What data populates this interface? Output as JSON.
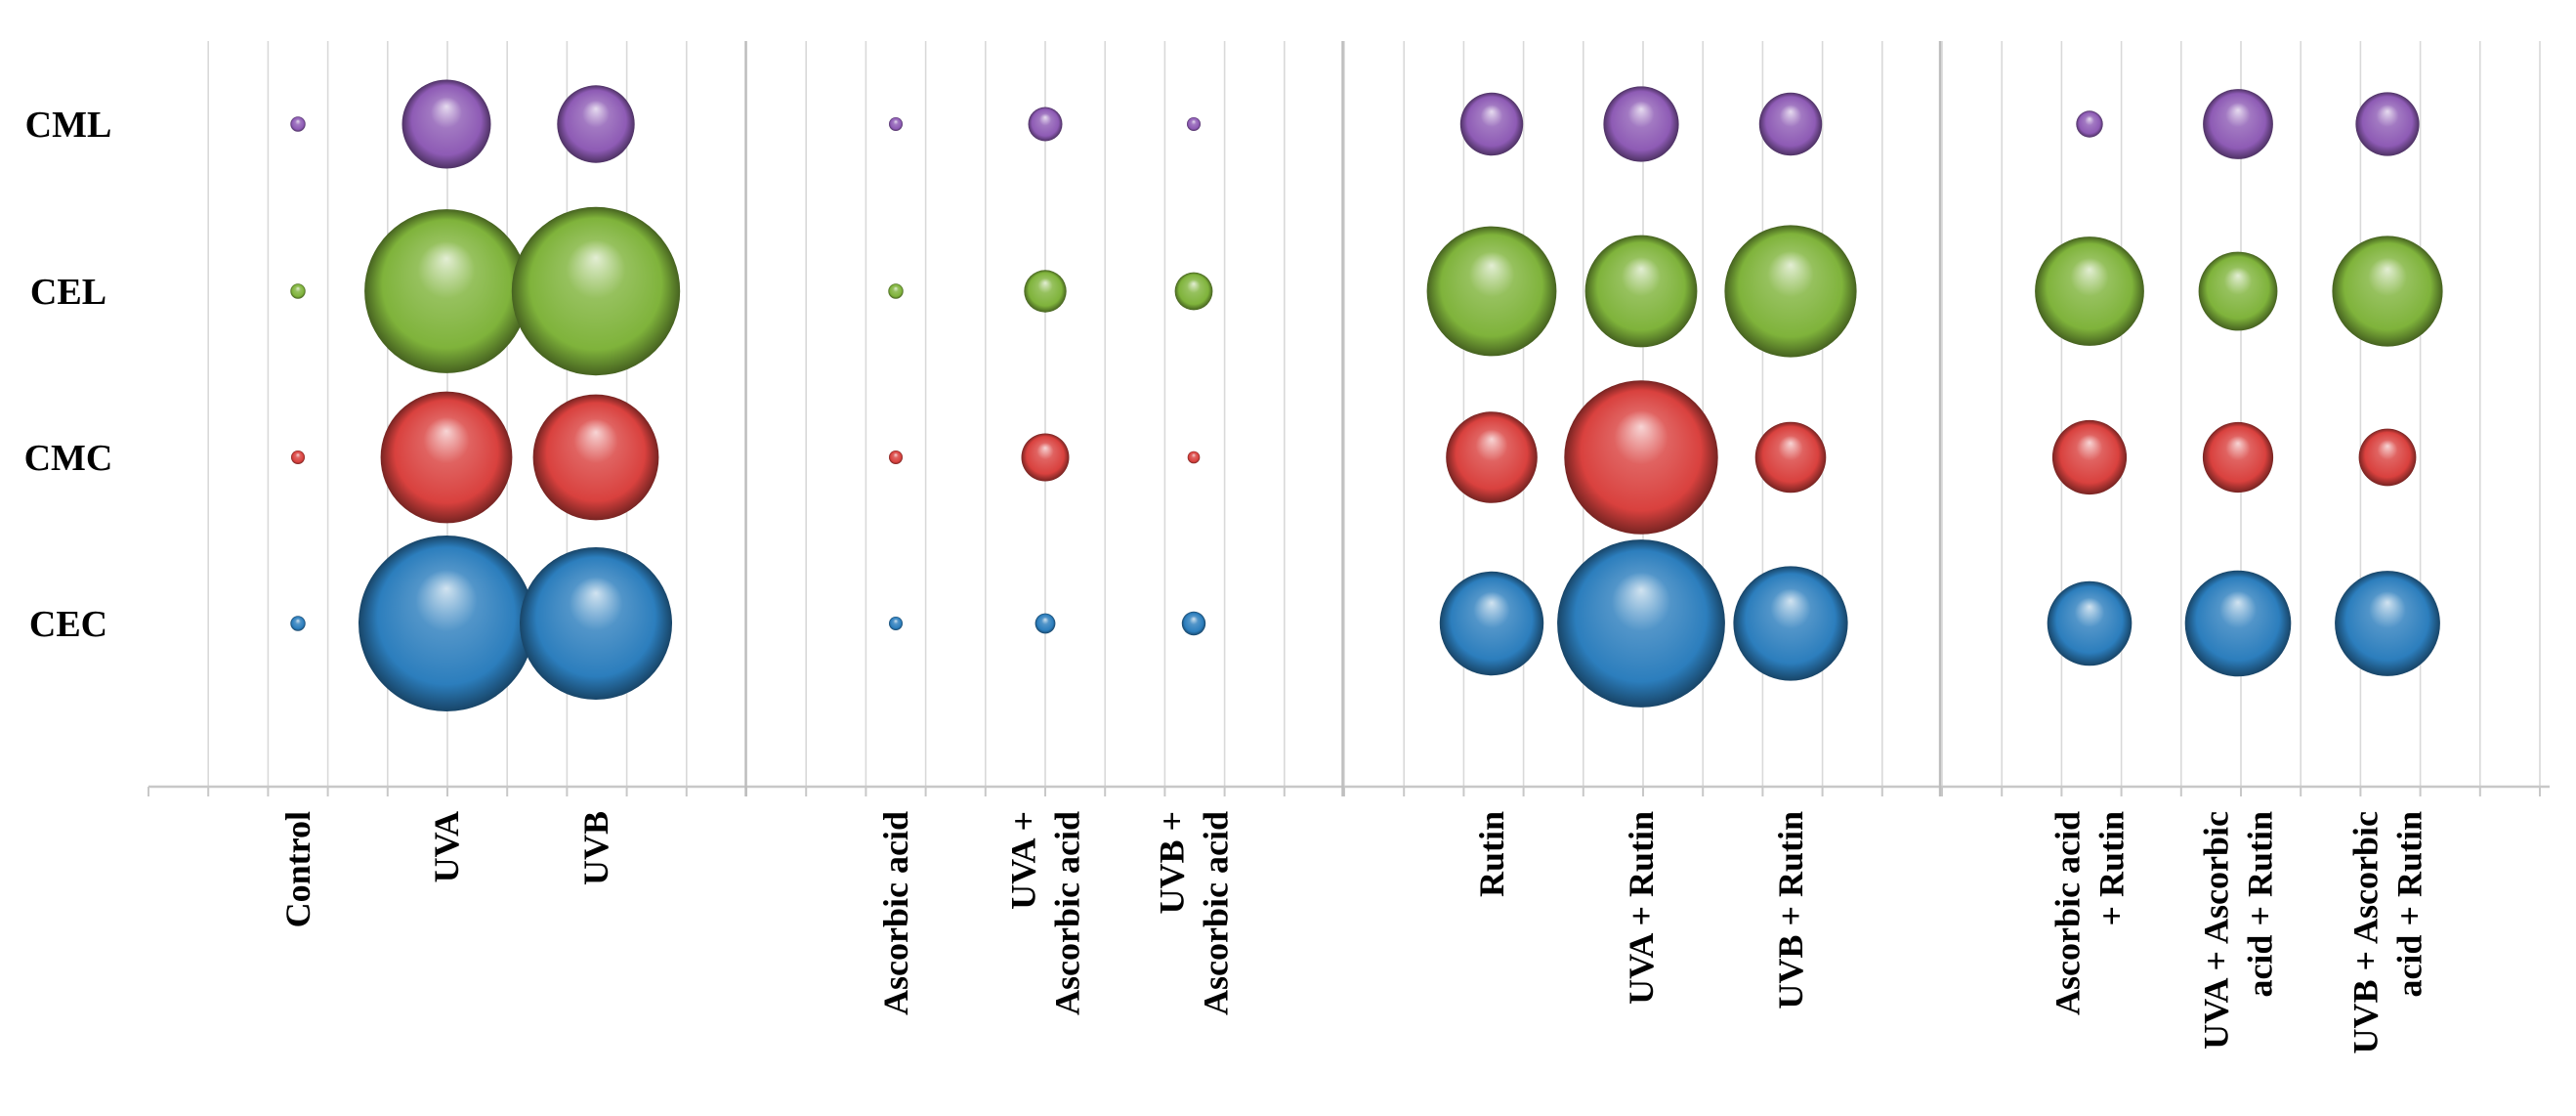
{
  "chart_data": {
    "type": "bubble",
    "rows": [
      "CML",
      "CEL",
      "CMC",
      "CEC"
    ],
    "categories": [
      "Control",
      "UVA",
      "UVB",
      "Ascorbic acid",
      "UVA + Ascorbic acid",
      "UVB + Ascorbic acid",
      "Rutin",
      "UVA + Rutin",
      "UVB + Rutin",
      "Ascorbic acid + Rutin",
      "UVA + Ascorbic acid + Rutin",
      "UVB + Ascorbic acid + Rutin"
    ],
    "category_label_lines": [
      [
        "Control"
      ],
      [
        "UVA"
      ],
      [
        "UVB"
      ],
      [
        "Ascorbic acid"
      ],
      [
        "UVA +",
        "Ascorbic acid"
      ],
      [
        "UVB +",
        "Ascorbic acid"
      ],
      [
        "Rutin"
      ],
      [
        "UVA + Rutin"
      ],
      [
        "UVB + Rutin"
      ],
      [
        "Ascorbic acid",
        "+ Rutin"
      ],
      [
        "UVA + Ascorbic",
        "acid + Rutin"
      ],
      [
        "UVB + Ascorbic",
        "acid + Rutin"
      ]
    ],
    "groups": [
      [
        0,
        1,
        2
      ],
      [
        3,
        4,
        5
      ],
      [
        6,
        7,
        8
      ],
      [
        9,
        10,
        11
      ]
    ],
    "series": [
      {
        "name": "CML",
        "color": "#8e5bb5",
        "values": [
          6,
          210,
          160,
          5,
          31,
          5,
          105,
          151,
          105,
          19,
          131,
          108
        ]
      },
      {
        "name": "CEL",
        "color": "#7fb33b",
        "values": [
          6,
          715,
          754,
          6,
          48,
          38,
          447,
          334,
          464,
          317,
          166,
          325
        ]
      },
      {
        "name": "CMC",
        "color": "#d9413e",
        "values": [
          5,
          461,
          421,
          5,
          61,
          4,
          222,
          629,
          134,
          147,
          132,
          88
        ]
      },
      {
        "name": "CEC",
        "color": "#2c7ebd",
        "values": [
          6,
          822,
          618,
          5,
          11,
          15,
          287,
          749,
          348,
          190,
          299,
          295
        ]
      }
    ],
    "xlabel": "",
    "ylabel": "",
    "grid": true,
    "legend": "none"
  }
}
